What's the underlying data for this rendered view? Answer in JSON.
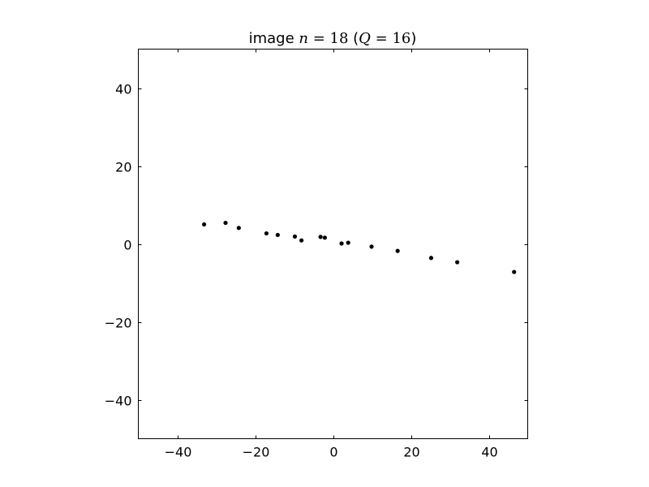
{
  "chart_data": {
    "type": "scatter",
    "title": {
      "prefix": "image ",
      "math_n": "n",
      "math_eq": " = ",
      "math_val": "18",
      "paren_open": " (",
      "math_q": "Q",
      "math_eq2": " = ",
      "math_val2": "16",
      "paren_close": ")"
    },
    "xlabel": "",
    "ylabel": "",
    "xlim": [
      -50,
      50
    ],
    "ylim": [
      -50,
      50
    ],
    "xticks": [
      -40,
      -20,
      0,
      20,
      40
    ],
    "yticks": [
      -40,
      -20,
      0,
      20,
      40
    ],
    "xtick_labels": [
      "−40",
      "−20",
      "0",
      "20",
      "40"
    ],
    "ytick_labels": [
      "−40",
      "−20",
      "0",
      "20",
      "40"
    ],
    "grid": false,
    "marker_color": "#000000",
    "points": [
      {
        "x": -33.1,
        "y": 5.0
      },
      {
        "x": -27.6,
        "y": 5.4
      },
      {
        "x": -24.2,
        "y": 4.1
      },
      {
        "x": -17.1,
        "y": 2.7
      },
      {
        "x": -14.2,
        "y": 2.3
      },
      {
        "x": -9.8,
        "y": 1.9
      },
      {
        "x": -8.1,
        "y": 0.9
      },
      {
        "x": -3.2,
        "y": 1.8
      },
      {
        "x": -2.1,
        "y": 1.6
      },
      {
        "x": 2.2,
        "y": 0.1
      },
      {
        "x": 3.9,
        "y": 0.3
      },
      {
        "x": 9.9,
        "y": -0.7
      },
      {
        "x": 16.6,
        "y": -1.8
      },
      {
        "x": 25.2,
        "y": -3.6
      },
      {
        "x": 31.9,
        "y": -4.7
      },
      {
        "x": 46.5,
        "y": -7.2
      }
    ]
  }
}
